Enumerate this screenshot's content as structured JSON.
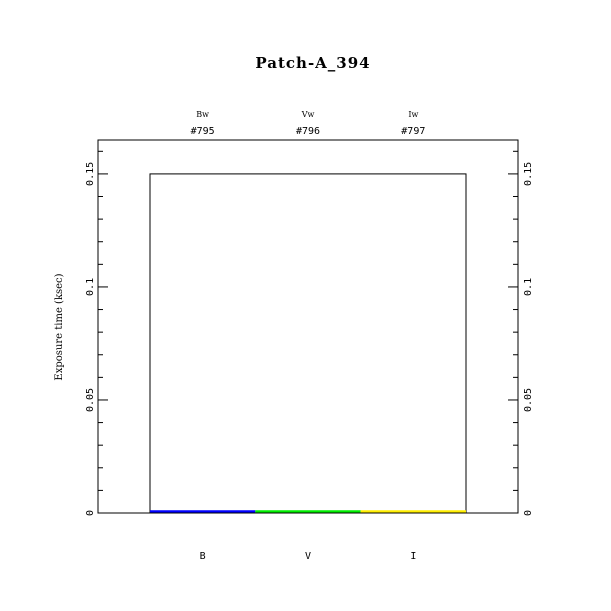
{
  "chart_data": {
    "type": "bar",
    "title": "Patch-A_394",
    "ylabel": "Exposure time (ksec)",
    "xlabel": "",
    "ylim": [
      0,
      0.165
    ],
    "yticks": [
      0,
      0.05,
      0.1,
      0.15
    ],
    "ytick_labels": [
      "0",
      "0.05",
      "0.1",
      "0.15"
    ],
    "categories": [
      "B",
      "V",
      "I"
    ],
    "top_filters": [
      "Bw",
      "Vw",
      "Iw"
    ],
    "top_ids": [
      "#795",
      "#796",
      "#797"
    ],
    "values": [
      0.001,
      0.001,
      0.001
    ],
    "colors": [
      "#0000ff",
      "#00ee00",
      "#ffee00"
    ],
    "envelope_value": 0.15,
    "grid": false
  }
}
